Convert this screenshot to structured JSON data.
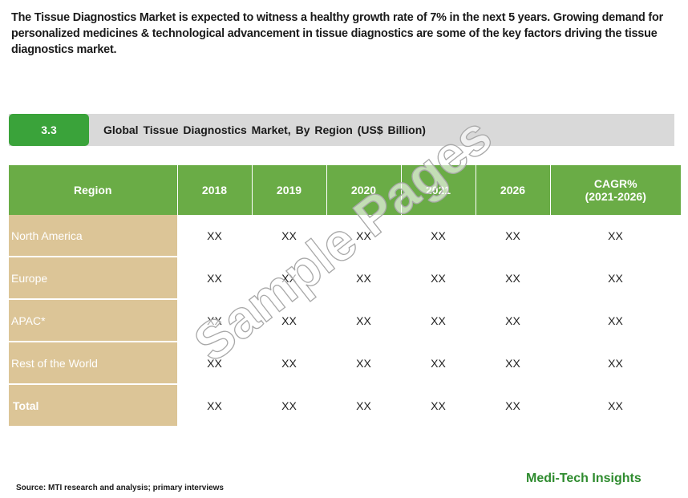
{
  "intro": "The Tissue Diagnostics Market is expected to witness a healthy growth rate of 7% in the next 5 years. Growing demand for personalized medicines & technological advancement in tissue diagnostics are some of the key factors driving the tissue diagnostics market.",
  "section": {
    "number": "3.3",
    "title": "Global  Tissue  Diagnostics  Market, By Region (US$ Billion)"
  },
  "table": {
    "headers": [
      "Region",
      "2018",
      "2019",
      "2020",
      "2021",
      "2026",
      "CAGR%",
      "(2021-2026)"
    ],
    "rows": [
      {
        "region": "North America",
        "values": [
          "XX",
          "XX",
          "XX",
          "XX",
          "XX",
          "XX"
        ]
      },
      {
        "region": "Europe",
        "values": [
          "XX",
          "XX",
          "XX",
          "XX",
          "XX",
          "XX"
        ]
      },
      {
        "region": "APAC*",
        "values": [
          "XX",
          "XX",
          "XX",
          "XX",
          "XX",
          "XX"
        ]
      },
      {
        "region": "Rest of the World",
        "values": [
          "XX",
          "XX",
          "XX",
          "XX",
          "XX",
          "XX"
        ]
      },
      {
        "region": "Total",
        "values": [
          "XX",
          "XX",
          "XX",
          "XX",
          "XX",
          "XX"
        ]
      }
    ]
  },
  "watermark": "Sample Pages",
  "source": "Source: MTI research and analysis; primary interviews",
  "brand": "Medi-Tech Insights",
  "colors": {
    "header_green": "#6aac46",
    "section_green": "#3aa33a",
    "region_tan": "#dcc597",
    "bar_gray": "#d9d9d9",
    "brand_green": "#2e8b2e"
  }
}
